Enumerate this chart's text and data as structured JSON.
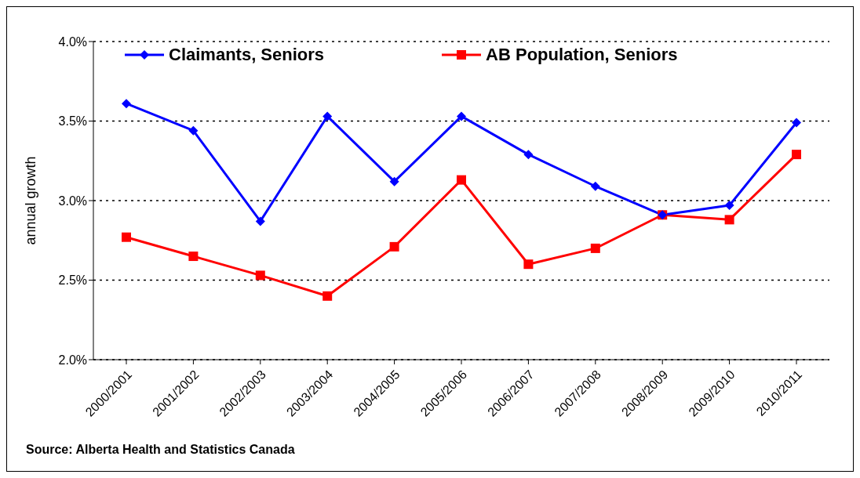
{
  "chart_data": {
    "type": "line",
    "ylabel": "annual growth",
    "categories": [
      "2000/2001",
      "2001/2002",
      "2002/2003",
      "2003/2004",
      "2004/2005",
      "2005/2006",
      "2006/2007",
      "2007/2008",
      "2008/2009",
      "2009/2010",
      "2010/2011"
    ],
    "series": [
      {
        "name": "Claimants, Seniors",
        "color": "#0000ff",
        "marker": "diamond",
        "values": [
          3.61,
          3.44,
          2.87,
          3.53,
          3.12,
          3.53,
          3.29,
          3.09,
          2.91,
          2.97,
          3.49
        ]
      },
      {
        "name": "AB Population, Seniors",
        "color": "#ff0000",
        "marker": "square",
        "values": [
          2.77,
          2.65,
          2.53,
          2.4,
          2.71,
          3.13,
          2.6,
          2.7,
          2.91,
          2.88,
          3.29
        ]
      }
    ],
    "ylim": [
      2,
      4
    ],
    "yticks": [
      {
        "value": 2,
        "label": "2.0%"
      },
      {
        "value": 2.5,
        "label": "2.5%"
      },
      {
        "value": 3,
        "label": "3.0%"
      },
      {
        "value": 3.5,
        "label": "3.5%"
      },
      {
        "value": 4,
        "label": "4.0%"
      }
    ],
    "grid": "y",
    "legend": "top",
    "line_style": "solid",
    "annotations": [
      "Source: Alberta Health and Statistics Canada"
    ]
  }
}
